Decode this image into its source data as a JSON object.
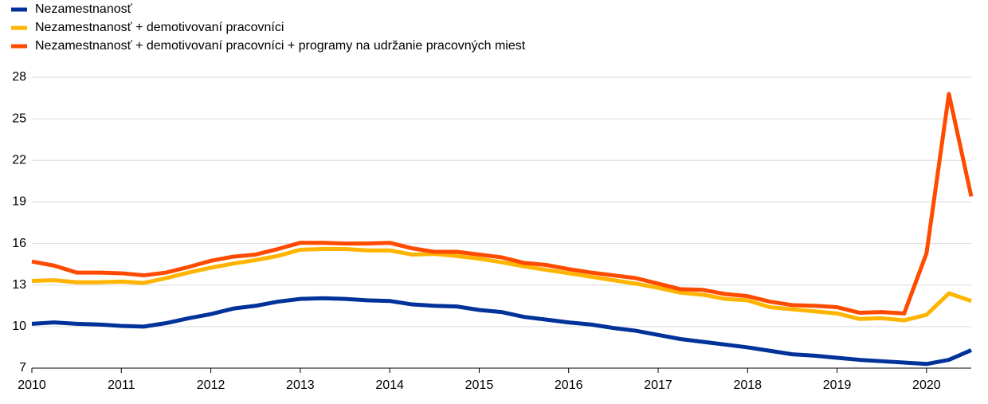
{
  "chart_data": {
    "type": "line",
    "x": [
      2010,
      2010.25,
      2010.5,
      2010.75,
      2011,
      2011.25,
      2011.5,
      2011.75,
      2012,
      2012.25,
      2012.5,
      2012.75,
      2013,
      2013.25,
      2013.5,
      2013.75,
      2014,
      2014.25,
      2014.5,
      2014.75,
      2015,
      2015.25,
      2015.5,
      2015.75,
      2016,
      2016.25,
      2016.5,
      2016.75,
      2017,
      2017.25,
      2017.5,
      2017.75,
      2018,
      2018.25,
      2018.5,
      2018.75,
      2019,
      2019.25,
      2019.5,
      2019.75,
      2020,
      2020.25,
      2020.5
    ],
    "series": [
      {
        "name": "Nezamestnanosť",
        "color": "#003299",
        "values": [
          10.2,
          10.3,
          10.2,
          10.15,
          10.05,
          10.0,
          10.25,
          10.6,
          10.9,
          11.3,
          11.5,
          11.8,
          12.0,
          12.05,
          12.0,
          11.9,
          11.85,
          11.6,
          11.5,
          11.45,
          11.2,
          11.05,
          10.7,
          10.5,
          10.3,
          10.15,
          9.9,
          9.7,
          9.4,
          9.1,
          8.9,
          8.7,
          8.5,
          8.25,
          8.0,
          7.9,
          7.75,
          7.6,
          7.5,
          7.4,
          7.3,
          7.6,
          8.3
        ]
      },
      {
        "name": "Nezamestnanosť + demotivovaní pracovníci",
        "color": "#ffb400",
        "values": [
          13.3,
          13.35,
          13.2,
          13.2,
          13.25,
          13.15,
          13.5,
          13.9,
          14.25,
          14.55,
          14.8,
          15.1,
          15.55,
          15.6,
          15.6,
          15.5,
          15.5,
          15.2,
          15.25,
          15.1,
          14.9,
          14.65,
          14.35,
          14.1,
          13.85,
          13.6,
          13.35,
          13.1,
          12.8,
          12.45,
          12.3,
          12.0,
          11.9,
          11.4,
          11.25,
          11.1,
          10.95,
          10.55,
          10.6,
          10.45,
          10.85,
          12.4,
          11.85
        ]
      },
      {
        "name": "Nezamestnanosť + demotivovaní pracovníci + programy na udržanie pracovných miest",
        "color": "#ff4b00",
        "values": [
          14.7,
          14.4,
          13.9,
          13.9,
          13.85,
          13.7,
          13.9,
          14.3,
          14.75,
          15.05,
          15.2,
          15.6,
          16.05,
          16.05,
          16.0,
          16.0,
          16.05,
          15.65,
          15.4,
          15.4,
          15.2,
          15.0,
          14.6,
          14.45,
          14.15,
          13.9,
          13.7,
          13.5,
          13.1,
          12.7,
          12.65,
          12.35,
          12.2,
          11.8,
          11.55,
          11.5,
          11.4,
          11.0,
          11.05,
          10.95,
          15.3,
          26.8,
          19.4
        ]
      }
    ],
    "xlim": [
      2010,
      2020.5
    ],
    "xticks": [
      2010,
      2011,
      2012,
      2013,
      2014,
      2015,
      2016,
      2017,
      2018,
      2019,
      2020
    ],
    "ylim": [
      7,
      28
    ],
    "yticks": [
      7,
      10,
      13,
      16,
      19,
      22,
      25,
      28
    ],
    "grid": true
  }
}
